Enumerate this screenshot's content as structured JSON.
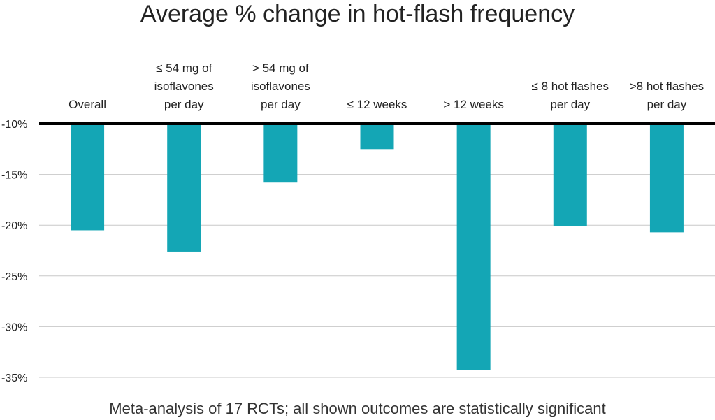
{
  "chart_data": {
    "type": "bar",
    "title": "Average % change in hot-flash frequency",
    "footnote": "Meta-analysis of 17 RCTs; all shown outcomes are statistically significant",
    "categories": [
      [
        "Overall"
      ],
      [
        "≤ 54 mg of",
        "isoflavones",
        "per day"
      ],
      [
        "> 54 mg of",
        "isoflavones",
        "per day"
      ],
      [
        "≤ 12 weeks"
      ],
      [
        "> 12 weeks"
      ],
      [
        "≤ 8 hot flashes",
        "per day"
      ],
      [
        ">8 hot flashes",
        "per day"
      ]
    ],
    "values": [
      -20.5,
      -22.6,
      -15.8,
      -12.5,
      -34.3,
      -20.1,
      -20.7
    ],
    "ylim": [
      -35,
      -10
    ],
    "yticks": [
      -10,
      -15,
      -20,
      -25,
      -30,
      -35
    ],
    "ytick_labels": [
      "-10%",
      "-15%",
      "-20%",
      "-25%",
      "-30%",
      "-35%"
    ],
    "grid": true,
    "bar_color": "#14a6b5",
    "baseline_color": "#000000",
    "grid_color": "#c8c8c8"
  }
}
